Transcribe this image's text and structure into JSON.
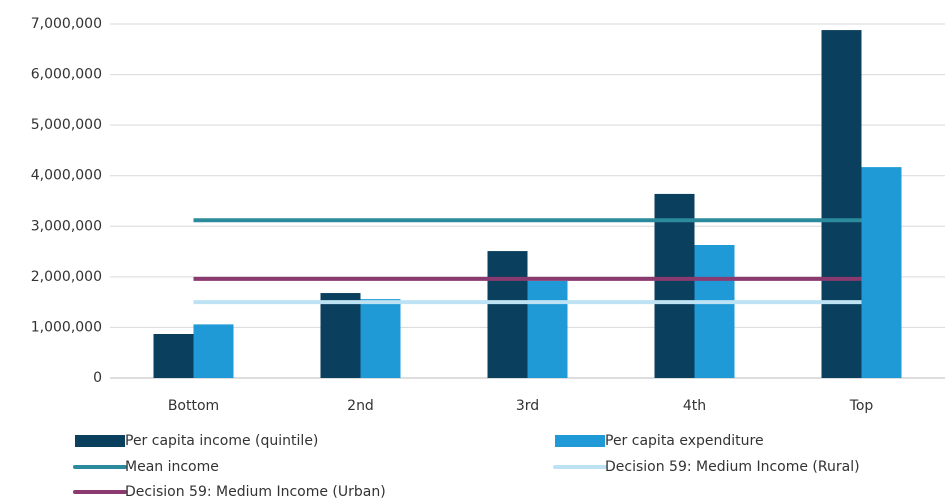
{
  "chart_data": {
    "type": "bar",
    "categories": [
      "Bottom",
      "2nd",
      "3rd",
      "4th",
      "Top"
    ],
    "series": [
      {
        "name": "Per capita income (quintile)",
        "color": "#0b3f5e",
        "type": "bar",
        "values": [
          870000,
          1680000,
          2510000,
          3640000,
          6880000
        ]
      },
      {
        "name": "Per capita expenditure",
        "color": "#1f9ad6",
        "type": "bar",
        "values": [
          1060000,
          1560000,
          1920000,
          2630000,
          4170000
        ]
      },
      {
        "name": "Mean income",
        "color": "#2b8a9c",
        "type": "line",
        "values": [
          3120000,
          3120000,
          3120000,
          3120000,
          3120000
        ]
      },
      {
        "name": "Decision 59: Medium Income (Rural)",
        "color": "#bde2f3",
        "type": "line",
        "values": [
          1500000,
          1500000,
          1500000,
          1500000,
          1500000
        ]
      },
      {
        "name": "Decision 59: Medium Income (Urban)",
        "color": "#8b3a6f",
        "type": "line",
        "values": [
          1960000,
          1960000,
          1960000,
          1960000,
          1960000
        ]
      }
    ],
    "ylim": [
      0,
      7000000
    ],
    "yticks": [
      0,
      {
        "value": 1000000,
        "label": "1,000,000"
      },
      {
        "value": 2000000,
        "label": "2,000,000"
      },
      {
        "value": 3000000,
        "label": "3,000,000"
      },
      {
        "value": 4000000,
        "label": "4,000,000"
      },
      {
        "value": 5000000,
        "label": "5,000,000"
      },
      {
        "value": 6000000,
        "label": "6,000,000"
      },
      {
        "value": 7000000,
        "label": "7,000,000"
      }
    ],
    "grid": true
  }
}
